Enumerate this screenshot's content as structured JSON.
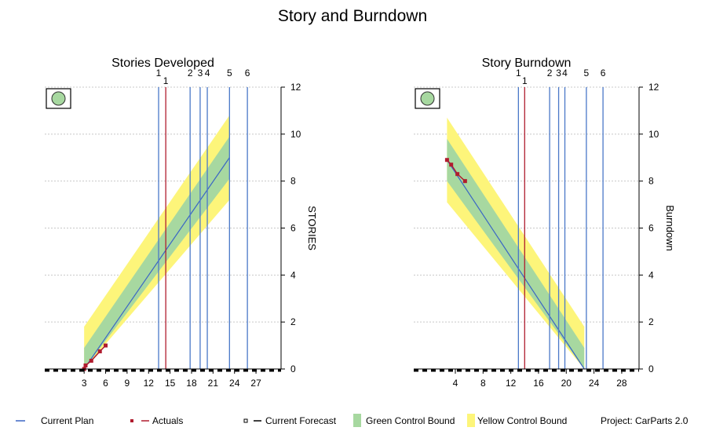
{
  "window": {
    "title": "Story and Burndown"
  },
  "colors": {
    "plan": "#3a66c4",
    "actual": "#b01c2e",
    "green_band": "#a7d8a0",
    "yellow_band": "#fdf57a",
    "milestone_blue": "#4a78c8",
    "milestone_red": "#b01c2e",
    "status_green": "#a7d8a0",
    "grid": "#c8c8c8"
  },
  "chart_data": [
    {
      "id": "stories",
      "type": "line",
      "title": "Stories Developed",
      "ylabel": "STORIES",
      "status_icon": "green-status-icon",
      "xlim": [
        -2.5,
        30.5
      ],
      "ylim": [
        0,
        12
      ],
      "x_ticks": [
        3,
        6,
        9,
        12,
        15,
        18,
        21,
        24,
        27
      ],
      "y_ticks": [
        0,
        2,
        4,
        6,
        8,
        10,
        12
      ],
      "grid": true,
      "milestones": [
        {
          "label": "1",
          "x": 13.4,
          "color": "blue",
          "row": 1
        },
        {
          "label": "1",
          "x": 14.4,
          "color": "red",
          "row": 2
        },
        {
          "label": "2",
          "x": 17.8,
          "color": "blue",
          "row": 1
        },
        {
          "label": "3",
          "x": 19.2,
          "color": "blue",
          "row": 1
        },
        {
          "label": "4",
          "x": 20.2,
          "color": "blue",
          "row": 1
        },
        {
          "label": "5",
          "x": 23.3,
          "color": "blue",
          "row": 1
        },
        {
          "label": "6",
          "x": 25.8,
          "color": "blue",
          "row": 1
        }
      ],
      "plan": {
        "x": [
          3,
          23.3
        ],
        "y": [
          0,
          9
        ]
      },
      "green_band_halfwidth": 0.9,
      "yellow_band_halfwidth": 1.8,
      "series": [
        {
          "name": "Actuals",
          "x": [
            3,
            3.2,
            4,
            5.2,
            6
          ],
          "y": [
            0,
            0.15,
            0.35,
            0.75,
            1.0
          ]
        }
      ]
    },
    {
      "id": "burndown",
      "type": "line",
      "title": "Story Burndown",
      "ylabel": "Burndown",
      "status_icon": "green-status-icon",
      "xlim": [
        -2,
        30.5
      ],
      "ylim": [
        0,
        12
      ],
      "x_ticks": [
        4,
        8,
        12,
        16,
        20,
        24,
        28
      ],
      "y_ticks": [
        0,
        2,
        4,
        6,
        8,
        10,
        12
      ],
      "grid": true,
      "milestones": [
        {
          "label": "1",
          "x": 13.1,
          "color": "blue",
          "row": 1
        },
        {
          "label": "1",
          "x": 14.0,
          "color": "red",
          "row": 2
        },
        {
          "label": "2",
          "x": 17.6,
          "color": "blue",
          "row": 1
        },
        {
          "label": "3",
          "x": 18.9,
          "color": "blue",
          "row": 1
        },
        {
          "label": "4",
          "x": 19.8,
          "color": "blue",
          "row": 1
        },
        {
          "label": "5",
          "x": 22.9,
          "color": "blue",
          "row": 1
        },
        {
          "label": "6",
          "x": 25.3,
          "color": "blue",
          "row": 1
        }
      ],
      "plan": {
        "x": [
          2.8,
          22.6
        ],
        "y": [
          8.9,
          0
        ]
      },
      "green_band_halfwidth": 0.9,
      "yellow_band_halfwidth": 1.8,
      "series": [
        {
          "name": "Actuals",
          "x": [
            2.8,
            3.4,
            4.3,
            5.4
          ],
          "y": [
            8.9,
            8.7,
            8.3,
            8.0
          ]
        }
      ]
    }
  ],
  "legend": {
    "current_plan": "Current Plan",
    "actuals": "Actuals",
    "current_forecast": "Current Forecast",
    "green_bound": "Green Control Bound",
    "yellow_bound": "Yellow Control Bound",
    "project": "Project: CarParts 2.0"
  }
}
